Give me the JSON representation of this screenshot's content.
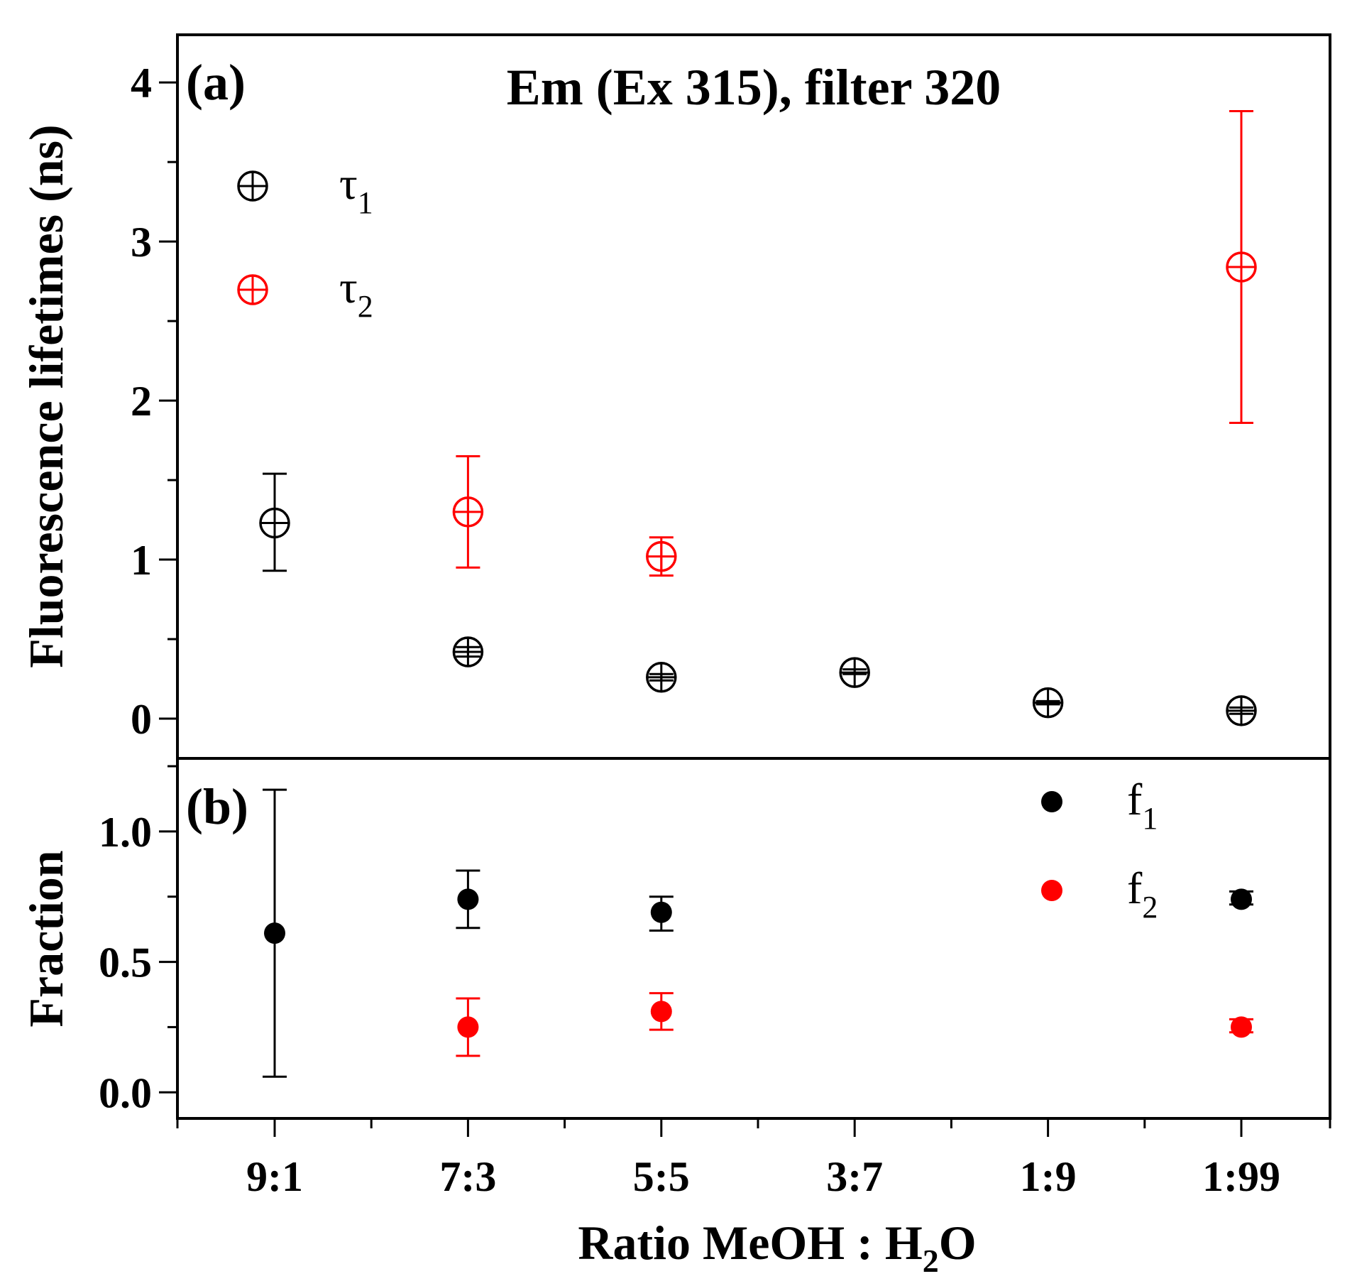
{
  "chart_data": [
    {
      "panel": "(a)",
      "type": "scatter",
      "title": "Em (Ex 315), filter 320",
      "ylabel": "Fluorescence lifetimes (ns)",
      "ylim": [
        -0.25,
        4.3
      ],
      "yticks": [
        0,
        1,
        2,
        3,
        4
      ],
      "yticklabels": [
        "0",
        "1",
        "2",
        "3",
        "4"
      ],
      "series": [
        {
          "name": "τ1",
          "legend_main": "τ",
          "legend_sub": "1",
          "color": "#000000",
          "marker": "circle-plus",
          "points": [
            {
              "x": "9:1",
              "y": 1.23,
              "err_low": 0.93,
              "err_high": 1.54
            },
            {
              "x": "7:3",
              "y": 0.42,
              "err_low": 0.39,
              "err_high": 0.45
            },
            {
              "x": "5:5",
              "y": 0.26,
              "err_low": 0.24,
              "err_high": 0.28
            },
            {
              "x": "3:7",
              "y": 0.29,
              "err_low": 0.28,
              "err_high": 0.31
            },
            {
              "x": "1:9",
              "y": 0.1,
              "err_low": 0.09,
              "err_high": 0.11
            },
            {
              "x": "1:99",
              "y": 0.05,
              "err_low": 0.03,
              "err_high": 0.07
            }
          ]
        },
        {
          "name": "τ2",
          "legend_main": "τ",
          "legend_sub": "2",
          "color": "#ff0000",
          "marker": "circle-plus",
          "points": [
            {
              "x": "7:3",
              "y": 1.3,
              "err_low": 0.95,
              "err_high": 1.65
            },
            {
              "x": "5:5",
              "y": 1.02,
              "err_low": 0.9,
              "err_high": 1.14
            },
            {
              "x": "1:99",
              "y": 2.84,
              "err_low": 1.86,
              "err_high": 3.82
            }
          ]
        }
      ]
    },
    {
      "panel": "(b)",
      "type": "scatter",
      "ylabel": "Fraction",
      "ylim": [
        -0.1,
        1.28
      ],
      "yticks": [
        0.0,
        0.5,
        1.0
      ],
      "yticklabels": [
        "0.0",
        "0.5",
        "1.0"
      ],
      "xlabel_main": "Ratio MeOH : H",
      "xlabel_sub": "2",
      "xlabel_tail": "O",
      "categories": [
        "9:1",
        "7:3",
        "5:5",
        "3:7",
        "1:9",
        "1:99"
      ],
      "series": [
        {
          "name": "f1",
          "legend_main": "f",
          "legend_sub": "1",
          "color": "#000000",
          "marker": "filled-circle",
          "points": [
            {
              "x": "9:1",
              "y": 0.61,
              "err_low": 0.06,
              "err_high": 1.16
            },
            {
              "x": "7:3",
              "y": 0.74,
              "err_low": 0.63,
              "err_high": 0.85
            },
            {
              "x": "5:5",
              "y": 0.69,
              "err_low": 0.62,
              "err_high": 0.75
            },
            {
              "x": "1:99",
              "y": 0.74,
              "err_low": 0.72,
              "err_high": 0.77
            }
          ]
        },
        {
          "name": "f2",
          "legend_main": "f",
          "legend_sub": "2",
          "color": "#ff0000",
          "marker": "filled-circle",
          "points": [
            {
              "x": "7:3",
              "y": 0.25,
              "err_low": 0.14,
              "err_high": 0.36
            },
            {
              "x": "5:5",
              "y": 0.31,
              "err_low": 0.24,
              "err_high": 0.38
            },
            {
              "x": "1:99",
              "y": 0.25,
              "err_low": 0.23,
              "err_high": 0.28
            }
          ]
        }
      ]
    }
  ]
}
